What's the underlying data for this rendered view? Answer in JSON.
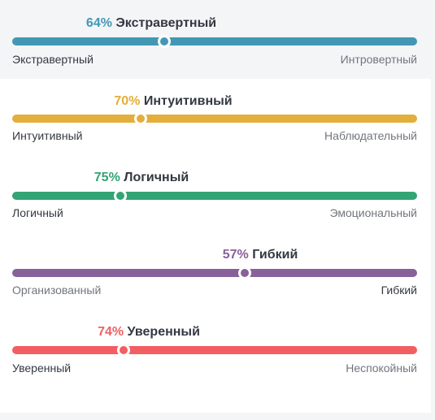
{
  "traits": [
    {
      "percent": "64%",
      "dominant": "Экстравертный",
      "left_label": "Экстравертный",
      "right_label": "Интровертный",
      "level": 0.375,
      "color": "#4298b4",
      "dominant_side": "left"
    },
    {
      "percent": "70%",
      "dominant": "Интуитивный",
      "left_label": "Интуитивный",
      "right_label": "Наблюдательный",
      "level": 0.318,
      "color": "#e4ae3a",
      "dominant_side": "left"
    },
    {
      "percent": "75%",
      "dominant": "Логичный",
      "left_label": "Логичный",
      "right_label": "Эмоциональный",
      "level": 0.268,
      "color": "#33a474",
      "dominant_side": "left"
    },
    {
      "percent": "57%",
      "dominant": "Гибкий",
      "left_label": "Организованный",
      "right_label": "Гибкий",
      "level": 0.575,
      "color": "#88619a",
      "dominant_side": "right"
    },
    {
      "percent": "74%",
      "dominant": "Уверенный",
      "left_label": "Уверенный",
      "right_label": "Неспокойный",
      "level": 0.275,
      "color": "#f25e62",
      "dominant_side": "left"
    }
  ]
}
